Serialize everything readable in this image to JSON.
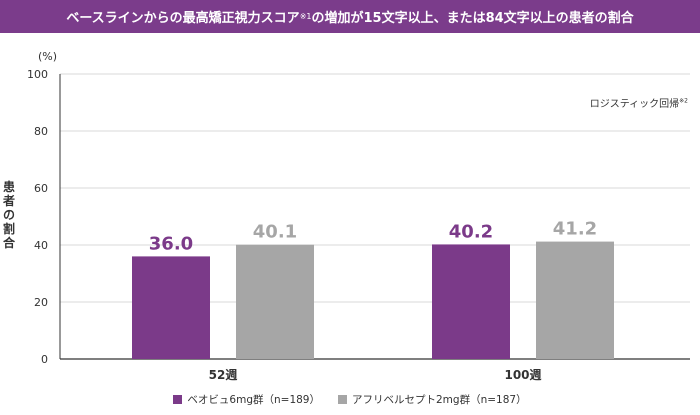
{
  "title": {
    "main": "ベースラインからの最高矯正視力スコア",
    "note": "※1",
    "rest": "の増加が15文字以上、または84文字以上の患者の割合"
  },
  "method_note": {
    "text": "ロジスティック回帰",
    "mark": "※2"
  },
  "colors": {
    "title_bg": "#7b3c8b",
    "series1": "#7b3a89",
    "series2": "#a6a6a6",
    "axis": "#333333",
    "grid": "#d9d9d9"
  },
  "chart_data": {
    "type": "bar",
    "title": "ベースラインからの最高矯正視力スコア※1の増加が15文字以上、または84文字以上の患者の割合",
    "ylabel": "患者の割合",
    "yunit": "(%)",
    "ylim": [
      0,
      100
    ],
    "yticks": [
      0,
      20,
      40,
      60,
      80,
      100
    ],
    "grid": true,
    "legend": "bottom",
    "categories": [
      "52週",
      "100週"
    ],
    "series": [
      {
        "name": "ベオビュ6mg群（n=189）",
        "values": [
          36.0,
          40.2
        ],
        "labels": [
          "36.0",
          "40.2"
        ]
      },
      {
        "name": "アフリベルセプト2mg群（n=187）",
        "values": [
          40.1,
          41.2
        ],
        "labels": [
          "40.1",
          "41.2"
        ]
      }
    ]
  }
}
